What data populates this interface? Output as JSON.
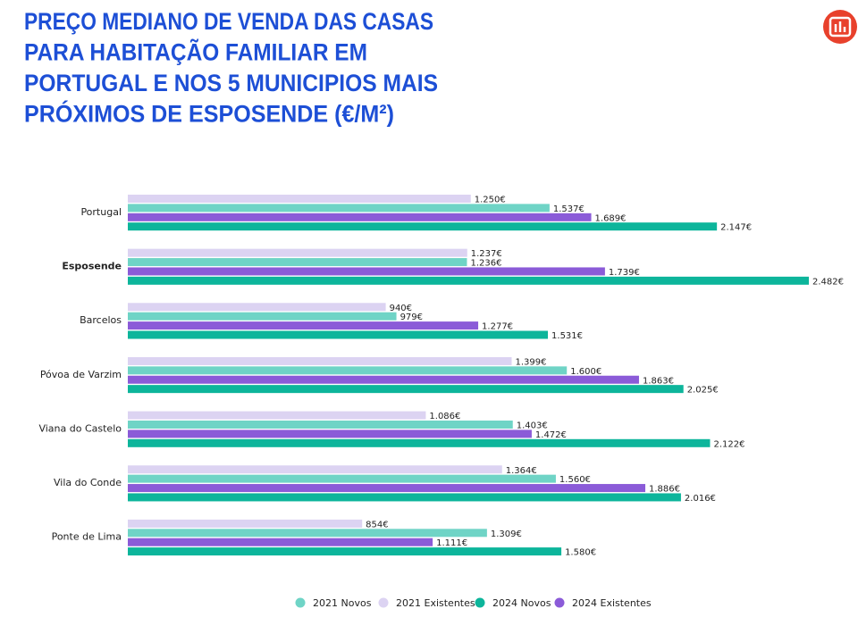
{
  "chart_data": {
    "type": "bar",
    "orientation": "horizontal",
    "title": [
      "PREÇO MEDIANO DE VENDA DAS CASAS",
      "PARA HABITAÇÃO FAMILIAR EM",
      "PORTUGAL E NOS 5 MUNICIPIOS MAIS",
      "PRÓXIMOS DE ESPOSENDE (€/M²)"
    ],
    "categories": [
      "Portugal",
      "Esposende",
      "Barcelos",
      "Póvoa de Varzim",
      "Viana do Castelo",
      "Vila do Conde",
      "Ponte de Lima"
    ],
    "series": [
      {
        "name": "2021 Novos",
        "color": "#6fd4c6",
        "values": [
          1537,
          1236,
          979,
          1600,
          1403,
          1560,
          1309
        ],
        "value_labels": [
          "1.537€",
          "1.236€",
          "979€",
          "1.600€",
          "1.403€",
          "1.560€",
          "1.309€"
        ]
      },
      {
        "name": "2021 Existentes",
        "color": "#dcd3f2",
        "values": [
          1250,
          1237,
          940,
          1399,
          1086,
          1364,
          854
        ],
        "value_labels": [
          "1.250€",
          "1.237€",
          "940€",
          "1.399€",
          "1.086€",
          "1.364€",
          "854€"
        ]
      },
      {
        "name": "2024 Novos",
        "color": "#0db59b",
        "values": [
          2147,
          2482,
          1531,
          2025,
          2122,
          2016,
          1580
        ],
        "value_labels": [
          "2.147€",
          "2.482€",
          "1.531€",
          "2.025€",
          "2.122€",
          "2.016€",
          "1.580€"
        ]
      },
      {
        "name": "2024 Existentes",
        "color": "#8b5bd8",
        "values": [
          1689,
          1739,
          1277,
          1863,
          1472,
          1886,
          1111
        ],
        "value_labels": [
          "1.689€",
          "1.739€",
          "1.277€",
          "1.863€",
          "1.472€",
          "1.886€",
          "1.111€"
        ]
      }
    ],
    "legend": "bottom"
  }
}
